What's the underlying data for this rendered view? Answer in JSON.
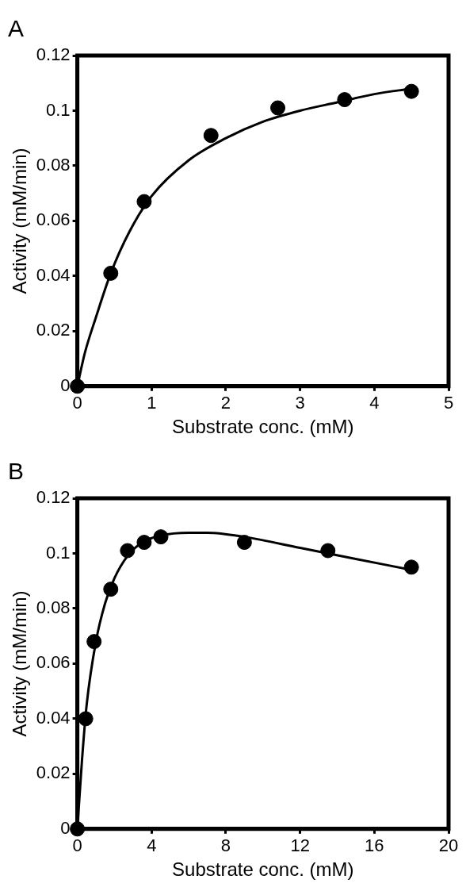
{
  "chart_data": [
    {
      "type": "scatter",
      "title": "A",
      "xlabel": "Substrate conc. (mM)",
      "ylabel": "Activity (mM/min)",
      "xlim": [
        0,
        5
      ],
      "xticks": [
        0,
        1,
        2,
        3,
        4,
        5
      ],
      "ylim": [
        0,
        0.12
      ],
      "yticks": [
        0,
        0.02,
        0.04,
        0.06,
        0.08,
        0.1,
        0.12
      ],
      "series": [
        {
          "type": "line",
          "color": "#000000",
          "marker": "none",
          "x": [
            0,
            0.1,
            0.25,
            0.45,
            0.7,
            1.0,
            1.5,
            2.0,
            2.5,
            3.0,
            3.5,
            4.0,
            4.5
          ],
          "values": [
            0,
            0.012,
            0.025,
            0.041,
            0.056,
            0.069,
            0.082,
            0.09,
            0.096,
            0.1,
            0.103,
            0.106,
            0.108
          ]
        },
        {
          "type": "scatter",
          "color": "#000000",
          "marker": "circle",
          "x": [
            0,
            0.45,
            0.9,
            1.8,
            2.7,
            3.6,
            4.5
          ],
          "values": [
            0,
            0.041,
            0.067,
            0.091,
            0.101,
            0.104,
            0.107
          ]
        }
      ]
    },
    {
      "type": "scatter",
      "title": "B",
      "xlabel": "Substrate conc. (mM)",
      "ylabel": "Activity (mM/min)",
      "xlim": [
        0,
        20
      ],
      "xticks": [
        0,
        4,
        8,
        12,
        16,
        20
      ],
      "ylim": [
        0,
        0.12
      ],
      "yticks": [
        0,
        0.02,
        0.04,
        0.06,
        0.08,
        0.1,
        0.12
      ],
      "series": [
        {
          "type": "line",
          "color": "#000000",
          "marker": "none",
          "x": [
            0,
            0.25,
            0.5,
            1,
            1.5,
            2,
            2.7,
            3.5,
            4.5,
            6,
            7,
            9,
            12,
            15,
            18
          ],
          "values": [
            0,
            0.025,
            0.045,
            0.068,
            0.082,
            0.091,
            0.099,
            0.104,
            0.1065,
            0.1075,
            0.1075,
            0.106,
            0.102,
            0.098,
            0.094
          ]
        },
        {
          "type": "scatter",
          "color": "#000000",
          "marker": "circle",
          "x": [
            0,
            0.45,
            0.9,
            1.8,
            2.7,
            3.6,
            4.5,
            9,
            13.5,
            18
          ],
          "values": [
            0,
            0.04,
            0.068,
            0.087,
            0.101,
            0.104,
            0.106,
            0.104,
            0.101,
            0.095
          ]
        }
      ]
    }
  ]
}
